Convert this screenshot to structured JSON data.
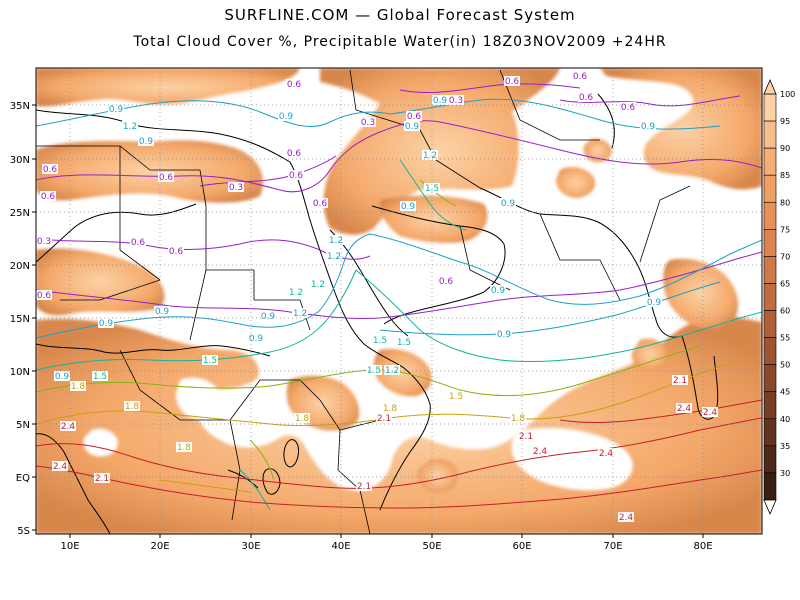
{
  "header": {
    "title": "SURFLINE.COM — Global Forecast System",
    "subtitle": "Total Cloud Cover %, Precipitable Water(in) 18Z03NOV2009 +24HR"
  },
  "map": {
    "lon_ticks": [
      "10E",
      "20E",
      "30E",
      "40E",
      "50E",
      "60E",
      "70E",
      "80E"
    ],
    "lat_ticks": [
      "35N",
      "30N",
      "25N",
      "20N",
      "15N",
      "10N",
      "5N",
      "EQ",
      "5S"
    ],
    "colorbar_ticks": [
      "100",
      "95",
      "90",
      "85",
      "80",
      "75",
      "70",
      "65",
      "60",
      "55",
      "50",
      "45",
      "40",
      "35",
      "30"
    ],
    "contour_labels": {
      "purple": [
        "0.6",
        "0.3",
        "0.6",
        "0.6",
        "0.3",
        "0.6",
        "0.6",
        "0.6",
        "0.6",
        "0.6",
        "0.6",
        "0.6",
        "0.6",
        "0.6",
        "0.3",
        "0.3",
        "0.6",
        "0.6",
        "0.6",
        "0.6"
      ],
      "blue": [
        "0.9",
        "1.2",
        "0.9",
        "0.9",
        "0.9",
        "0.9",
        "0.9",
        "0.9",
        "0.9",
        "0.9",
        "0.9",
        "0.9",
        "0.9",
        "0.9",
        "0.9",
        "0.9",
        "0.9",
        "1.2",
        "1.2",
        "1.2"
      ],
      "green": [
        "1.2",
        "1.2",
        "1.2",
        "1.5",
        "1.5",
        "1.5",
        "1.5",
        "1.2",
        "1.5",
        "1.5"
      ],
      "olive": [
        "1.5",
        "1.8",
        "1.8",
        "1.8",
        "1.8",
        "1.8",
        "1.8"
      ],
      "red": [
        "2.4",
        "2.4",
        "2.1",
        "2.1",
        "2.1",
        "2.1",
        "2.1",
        "2.4",
        "2.4",
        "2.4",
        "2.4",
        "2.4"
      ]
    }
  },
  "colors": {
    "cloud_fill": "#f4a86a",
    "cloud_highlight": "#fcd2a6",
    "pw_0_3_0_6": "#9a1ec8",
    "pw_0_9": "#1ea0c8",
    "pw_1_2": "#10b49a",
    "pw_1_5": "#86b414",
    "pw_1_8": "#c8a014",
    "pw_2_1_2_4": "#c81e28"
  }
}
